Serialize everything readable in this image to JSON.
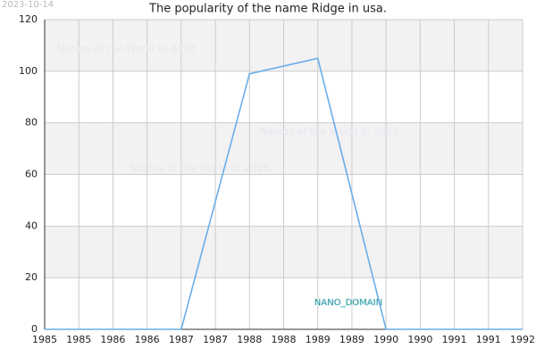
{
  "chart_data": {
    "type": "line",
    "title": "The popularity of the name Ridge in usa.",
    "date": "2023-10-14",
    "watermarks": [
      "Names of the World © 2023",
      "Names of the World © 2023",
      "Names of the World © 2023"
    ],
    "domain_label": "NANO_DOMAIN",
    "x": [
      1985,
      1986,
      1987,
      1988,
      1989,
      1990,
      1991,
      1992
    ],
    "series": [
      {
        "name": "Ridge",
        "color": "#6aaee8",
        "values": [
          0,
          0,
          0,
          99,
          105,
          0,
          0,
          0
        ]
      }
    ],
    "xlim": [
      1985,
      1992
    ],
    "xticks": [
      1985,
      {
        "value": 1985.5,
        "label": "1985"
      },
      1986,
      {
        "value": 1986.5,
        "label": "1986"
      },
      1987,
      {
        "value": 1987.5,
        "label": "1987"
      },
      1988,
      {
        "value": 1988.5,
        "label": "1988"
      },
      1989,
      {
        "value": 1989.5,
        "label": "1989"
      },
      1990,
      {
        "value": 1990.5,
        "label": "1990"
      },
      1991,
      {
        "value": 1991.5,
        "label": "1991"
      },
      1992
    ],
    "ylim": [
      0,
      120
    ],
    "yticks": [
      0,
      20,
      40,
      60,
      80,
      100,
      120
    ],
    "grid": true,
    "grid_bands": true
  }
}
